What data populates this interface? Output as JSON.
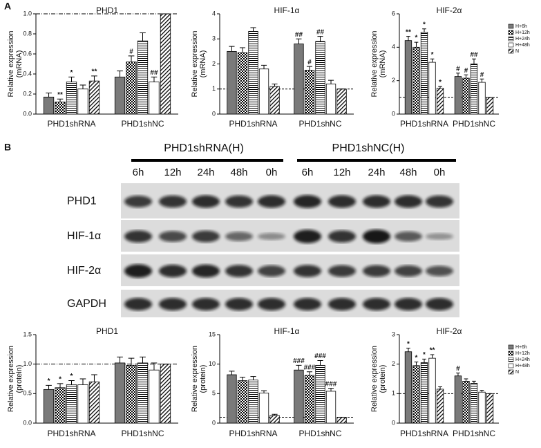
{
  "panel_labels": [
    "A",
    "B"
  ],
  "blot": {
    "groups": [
      "PHD1shRNA(H)",
      "PHD1shNC(H)"
    ],
    "lanes": [
      "6h",
      "12h",
      "24h",
      "48h",
      "0h",
      "6h",
      "12h",
      "24h",
      "48h",
      "0h"
    ],
    "rows": [
      "PHD1",
      "HIF-1α",
      "HIF-2α",
      "GAPDH"
    ]
  },
  "chart_data": [
    {
      "type": "bar",
      "title": "PHD1",
      "ylabel": "Relative expression",
      "ylabel2": "(mRNA)",
      "categories": [
        "PHD1shRNA",
        "PHD1shNC"
      ],
      "ylim": [
        0,
        1.0
      ],
      "yticks": [
        {
          "value": 0,
          "label": "0.0"
        },
        0.2,
        0.4,
        0.6,
        0.8,
        {
          "value": 1,
          "label": "1.0"
        }
      ],
      "refline": 1,
      "refline_style": "dashdot",
      "legend": false,
      "series": [
        {
          "name": "H+6h",
          "color": "#7a7a7a",
          "pattern": "solid",
          "values": [
            0.17,
            0.37
          ],
          "errors": [
            0.04,
            0.06
          ],
          "annotations": [
            null,
            null
          ]
        },
        {
          "name": "H+12h",
          "color": "#000000",
          "pattern": "checker",
          "values": [
            0.12,
            0.52
          ],
          "errors": [
            0.03,
            0.06
          ],
          "annotations": [
            "**",
            "#"
          ]
        },
        {
          "name": "H+24h",
          "color": "#000000",
          "pattern": "hlines",
          "values": [
            0.32,
            0.73
          ],
          "errors": [
            0.05,
            0.08
          ],
          "annotations": [
            "*",
            null
          ]
        },
        {
          "name": "H+48h",
          "color": "#ffffff",
          "pattern": "blank",
          "values": [
            0.25,
            0.32
          ],
          "errors": [
            0.04,
            0.05
          ],
          "annotations": [
            null,
            "##"
          ]
        },
        {
          "name": "N",
          "color": "#000000",
          "pattern": "diag",
          "values": [
            0.33,
            1.0
          ],
          "errors": [
            0.05,
            0
          ],
          "annotations": [
            "**",
            null
          ]
        }
      ]
    },
    {
      "type": "bar",
      "title": "HIF-1α",
      "ylabel": "Relative expression",
      "ylabel2": "(mRNA)",
      "categories": [
        "PHD1shRNA",
        "PHD1shNC"
      ],
      "ylim": [
        0,
        4
      ],
      "yticks": [
        0,
        1,
        2,
        3,
        4
      ],
      "refline": 1,
      "refline_style": "dashed",
      "legend": false,
      "series": [
        {
          "name": "H+6h",
          "color": "#7a7a7a",
          "pattern": "solid",
          "values": [
            2.5,
            2.8
          ],
          "errors": [
            0.2,
            0.2
          ],
          "annotations": [
            null,
            "##"
          ]
        },
        {
          "name": "H+12h",
          "color": "#000000",
          "pattern": "checker",
          "values": [
            2.45,
            1.75
          ],
          "errors": [
            0.2,
            0.15
          ],
          "annotations": [
            null,
            "#"
          ]
        },
        {
          "name": "H+24h",
          "color": "#000000",
          "pattern": "hlines",
          "values": [
            3.3,
            2.9
          ],
          "errors": [
            0.15,
            0.2
          ],
          "annotations": [
            null,
            "##"
          ]
        },
        {
          "name": "H+48h",
          "color": "#ffffff",
          "pattern": "blank",
          "values": [
            1.8,
            1.2
          ],
          "errors": [
            0.15,
            0.15
          ],
          "annotations": [
            null,
            null
          ]
        },
        {
          "name": "N",
          "color": "#000000",
          "pattern": "diag",
          "values": [
            1.1,
            1.0
          ],
          "errors": [
            0.1,
            0
          ],
          "annotations": [
            null,
            null
          ]
        }
      ]
    },
    {
      "type": "bar",
      "title": "HIF-2α",
      "ylabel": "Relative expression",
      "ylabel2": "(mRNA)",
      "categories": [
        "PHD1shRNA",
        "PHD1shNC"
      ],
      "ylim": [
        0,
        6
      ],
      "yticks": [
        0,
        2,
        4,
        6
      ],
      "refline": 1,
      "refline_style": "dashed",
      "legend": true,
      "series": [
        {
          "name": "H+6h",
          "color": "#7a7a7a",
          "pattern": "solid",
          "values": [
            4.4,
            2.25
          ],
          "errors": [
            0.25,
            0.2
          ],
          "annotations": [
            "**",
            "#"
          ]
        },
        {
          "name": "H+12h",
          "color": "#000000",
          "pattern": "checker",
          "values": [
            4.0,
            2.15
          ],
          "errors": [
            0.3,
            0.2
          ],
          "annotations": [
            "*",
            "#"
          ]
        },
        {
          "name": "H+24h",
          "color": "#000000",
          "pattern": "hlines",
          "values": [
            4.9,
            3.0
          ],
          "errors": [
            0.2,
            0.3
          ],
          "annotations": [
            "*",
            "##"
          ]
        },
        {
          "name": "H+48h",
          "color": "#ffffff",
          "pattern": "blank",
          "values": [
            3.1,
            1.9
          ],
          "errors": [
            0.2,
            0.2
          ],
          "annotations": [
            "*",
            "#"
          ]
        },
        {
          "name": "N",
          "color": "#000000",
          "pattern": "diag",
          "values": [
            1.55,
            1.0
          ],
          "errors": [
            0.1,
            0
          ],
          "annotations": [
            "*",
            null
          ]
        }
      ]
    },
    {
      "type": "bar",
      "title": "PHD1",
      "ylabel": "Relative expression",
      "ylabel2": "(protein)",
      "categories": [
        "PHD1shRNA",
        "PHD1shNC"
      ],
      "ylim": [
        0,
        1.5
      ],
      "yticks": [
        {
          "value": 0,
          "label": "0.0"
        },
        0.5,
        {
          "value": 1,
          "label": "1.0"
        },
        1.5
      ],
      "refline": 1,
      "refline_style": "dashdot",
      "legend": false,
      "series": [
        {
          "name": "H+6h",
          "color": "#7a7a7a",
          "pattern": "solid",
          "values": [
            0.57,
            1.02
          ],
          "errors": [
            0.07,
            0.1
          ],
          "annotations": [
            "*",
            null
          ]
        },
        {
          "name": "H+12h",
          "color": "#000000",
          "pattern": "checker",
          "values": [
            0.6,
            0.98
          ],
          "errors": [
            0.07,
            0.12
          ],
          "annotations": [
            "*",
            null
          ]
        },
        {
          "name": "H+24h",
          "color": "#000000",
          "pattern": "hlines",
          "values": [
            0.65,
            1.02
          ],
          "errors": [
            0.07,
            0.1
          ],
          "annotations": [
            "*",
            null
          ]
        },
        {
          "name": "H+48h",
          "color": "#ffffff",
          "pattern": "blank",
          "values": [
            0.65,
            0.9
          ],
          "errors": [
            0.1,
            0.12
          ],
          "annotations": [
            null,
            null
          ]
        },
        {
          "name": "N",
          "color": "#000000",
          "pattern": "diag",
          "values": [
            0.7,
            1.0
          ],
          "errors": [
            0.12,
            0
          ],
          "annotations": [
            null,
            null
          ]
        }
      ]
    },
    {
      "type": "bar",
      "title": "HIF-1α",
      "ylabel": "Relative expression",
      "ylabel2": "(protein)",
      "categories": [
        "PHD1shRNA",
        "PHD1shNC"
      ],
      "ylim": [
        0,
        15
      ],
      "yticks": [
        0,
        5,
        10,
        15
      ],
      "refline": 1,
      "refline_style": "dashed",
      "legend": false,
      "series": [
        {
          "name": "H+6h",
          "color": "#7a7a7a",
          "pattern": "solid",
          "values": [
            8.2,
            9.0
          ],
          "errors": [
            0.6,
            0.8
          ],
          "annotations": [
            null,
            "###"
          ]
        },
        {
          "name": "H+12h",
          "color": "#000000",
          "pattern": "checker",
          "values": [
            7.2,
            8.1
          ],
          "errors": [
            0.6,
            0.6
          ],
          "annotations": [
            null,
            "###"
          ]
        },
        {
          "name": "H+24h",
          "color": "#000000",
          "pattern": "hlines",
          "values": [
            7.3,
            9.8
          ],
          "errors": [
            0.6,
            0.8
          ],
          "annotations": [
            null,
            "###"
          ]
        },
        {
          "name": "H+48h",
          "color": "#ffffff",
          "pattern": "blank",
          "values": [
            5.1,
            5.4
          ],
          "errors": [
            0.4,
            0.5
          ],
          "annotations": [
            null,
            "###"
          ]
        },
        {
          "name": "N",
          "color": "#000000",
          "pattern": "diag",
          "values": [
            1.3,
            1.0
          ],
          "errors": [
            0.2,
            0
          ],
          "annotations": [
            null,
            null
          ]
        }
      ]
    },
    {
      "type": "bar",
      "title": "HIF-2α",
      "ylabel": "Relative expression",
      "ylabel2": "(protein)",
      "categories": [
        "PHD1shRNA",
        "PHD1shNC"
      ],
      "ylim": [
        0,
        3
      ],
      "yticks": [
        0,
        1,
        2,
        3
      ],
      "refline": 1,
      "refline_style": "dashed",
      "legend": true,
      "series": [
        {
          "name": "H+6h",
          "color": "#7a7a7a",
          "pattern": "solid",
          "values": [
            2.42,
            1.6
          ],
          "errors": [
            0.12,
            0.1
          ],
          "annotations": [
            "*",
            "#"
          ]
        },
        {
          "name": "H+12h",
          "color": "#000000",
          "pattern": "checker",
          "values": [
            1.95,
            1.42
          ],
          "errors": [
            0.12,
            0.08
          ],
          "annotations": [
            "*",
            null
          ]
        },
        {
          "name": "H+24h",
          "color": "#000000",
          "pattern": "hlines",
          "values": [
            2.05,
            1.35
          ],
          "errors": [
            0.12,
            0.07
          ],
          "annotations": [
            "*",
            null
          ]
        },
        {
          "name": "H+48h",
          "color": "#ffffff",
          "pattern": "blank",
          "values": [
            2.2,
            1.05
          ],
          "errors": [
            0.12,
            0.06
          ],
          "annotations": [
            "**",
            null
          ]
        },
        {
          "name": "N",
          "color": "#000000",
          "pattern": "diag",
          "values": [
            1.15,
            1.0
          ],
          "errors": [
            0.08,
            0
          ],
          "annotations": [
            null,
            null
          ]
        }
      ]
    }
  ]
}
